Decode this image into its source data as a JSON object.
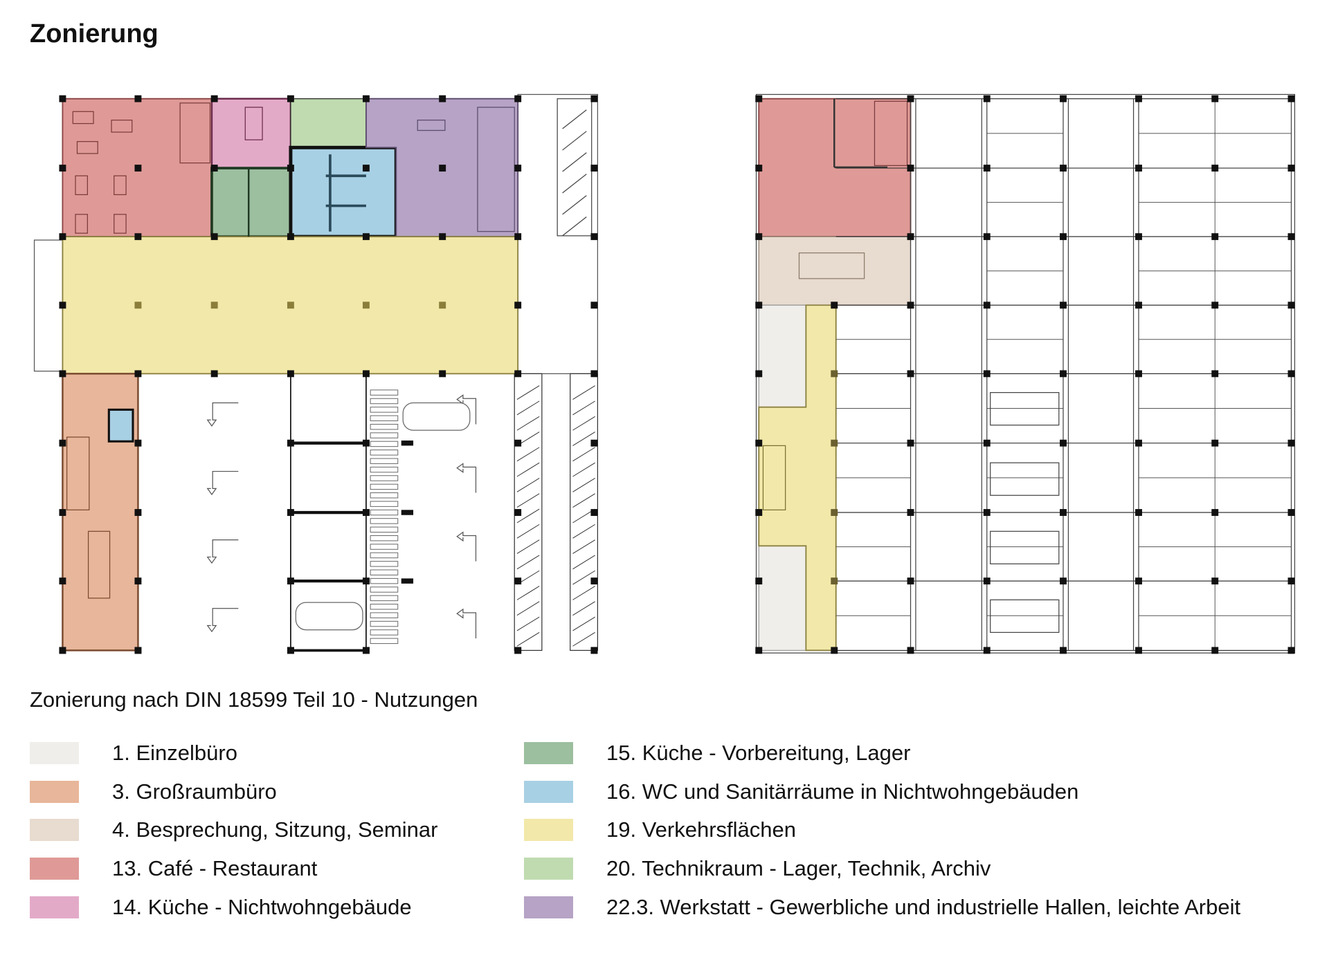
{
  "title": "Zonierung",
  "subtitle": "Zonierung nach DIN 18599 Teil 10 - Nutzungen",
  "legend": {
    "left": [
      {
        "label": "1. Einzelbüro",
        "color": "#efeeea"
      },
      {
        "label": "3. Großraumbüro",
        "color": "#e8b69a"
      },
      {
        "label": "4. Besprechung, Sitzung, Seminar",
        "color": "#e8dbcf"
      },
      {
        "label": "13. Café - Restaurant",
        "color": "#df9a97"
      },
      {
        "label": "14. Küche - Nichtwohngebäude",
        "color": "#e3aac8"
      }
    ],
    "right": [
      {
        "label": "15. Küche - Vorbereitung, Lager",
        "color": "#9cbf9f"
      },
      {
        "label": "16. WC und Sanitärräume in Nichtwohngebäuden",
        "color": "#a8d0e4"
      },
      {
        "label": "19. Verkehrsflächen",
        "color": "#f2e8a9"
      },
      {
        "label": "20. Technikraum - Lager, Technik, Archiv",
        "color": "#c0dbb0"
      },
      {
        "label": "22.3. Werkstatt - Gewerbliche und industrielle Hallen, leichte Arbeit",
        "color": "#b6a3c5"
      }
    ]
  }
}
